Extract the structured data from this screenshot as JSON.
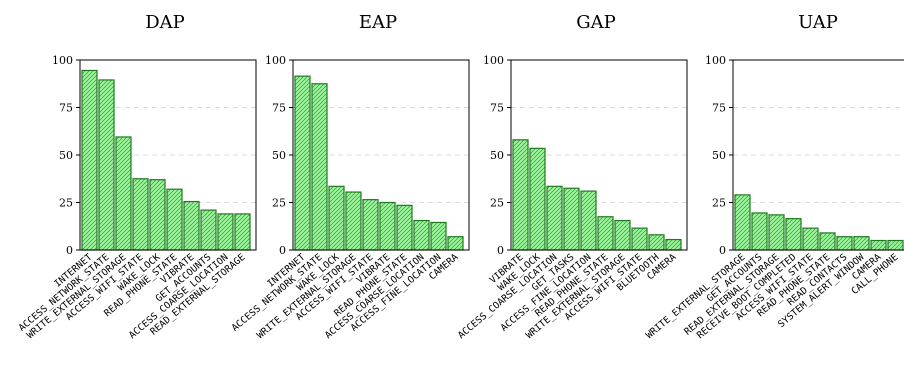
{
  "chart_data": [
    {
      "type": "bar",
      "title": "DAP",
      "categories": [
        "INTERNET",
        "ACCESS_NETWORK_STATE",
        "WRITE_EXTERNAL_STORAGE",
        "ACCESS_WIFI_STATE",
        "WAKE_LOCK",
        "READ_PHONE_STATE",
        "VIBRATE",
        "GET_ACCOUNTS",
        "ACCESS_COARSE_LOCATION",
        "READ_EXTERNAL_STORAGE"
      ],
      "values": [
        94.5,
        89.5,
        59.5,
        37.5,
        37,
        32,
        25.5,
        21,
        19,
        19
      ],
      "yticks": [
        "0",
        "25",
        "50",
        "75",
        "100"
      ],
      "ylim": [
        0,
        100
      ],
      "grid": true
    },
    {
      "type": "bar",
      "title": "EAP",
      "categories": [
        "INTERNET",
        "ACCESS_NETWORK_STATE",
        "WAKE_LOCK",
        "WRITE_EXTERNAL_STORAGE",
        "ACCESS_WIFI_STATE",
        "VIBRATE",
        "READ_PHONE_STATE",
        "ACCESS_COARSE_LOCATION",
        "ACCESS_FINE_LOCATION",
        "CAMERA"
      ],
      "values": [
        91.5,
        87.5,
        33.5,
        30.5,
        26.5,
        25,
        23.5,
        15.5,
        14.5,
        7
      ],
      "yticks": [
        "0",
        "25",
        "50",
        "75",
        "100"
      ],
      "ylim": [
        0,
        100
      ],
      "grid": true
    },
    {
      "type": "bar",
      "title": "GAP",
      "categories": [
        "VIBRATE",
        "WAKE_LOCK",
        "ACCESS_COARSE_LOCATION",
        "GET_TASKS",
        "ACCESS_FINE_LOCATION",
        "READ_PHONE_STATE",
        "WRITE_EXTERNAL_STORAGE",
        "ACCESS_WIFI_STATE",
        "BLUETOOTH",
        "CAMERA"
      ],
      "values": [
        58,
        53.5,
        33.5,
        32.5,
        31,
        17.5,
        15.5,
        11.5,
        8,
        5.5
      ],
      "yticks": [
        "0",
        "25",
        "50",
        "75",
        "100"
      ],
      "ylim": [
        0,
        100
      ],
      "grid": true
    },
    {
      "type": "bar",
      "title": "UAP",
      "categories": [
        "WRITE_EXTERNAL_STORAGE",
        "GET_ACCOUNTS",
        "READ_EXTERNAL_STORAGE",
        "RECEIVE_BOOT_COMPLETED",
        "ACCESS_WIFI_STATE",
        "READ_PHONE_STATE",
        "READ_CONTACTS",
        "SYSTEM_ALERT_WINDOW",
        "CAMERA",
        "CALL_PHONE"
      ],
      "values": [
        29,
        19.5,
        18.5,
        16.5,
        11.5,
        9,
        7,
        7,
        5,
        5
      ],
      "yticks": [
        "0",
        "25",
        "50",
        "75",
        "100"
      ],
      "ylim": [
        0,
        100
      ],
      "grid": true
    }
  ],
  "colors": {
    "bar_fill": "#9ef59e",
    "bar_stroke": "#1f7a1f",
    "hatch": "#2e9a2e",
    "grid": "#cfcfcf"
  }
}
